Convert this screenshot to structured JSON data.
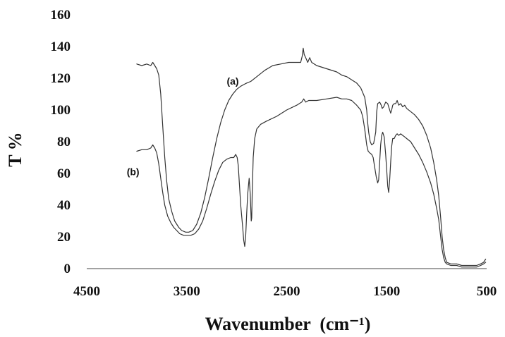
{
  "chart_data": {
    "type": "line",
    "title": "",
    "xlabel": "Wavenumber  (cm⁻¹)",
    "ylabel": "T %",
    "xlim": [
      4500,
      500
    ],
    "ylim": [
      0,
      160
    ],
    "x_ticks": [
      "4500",
      "3500",
      "2500",
      "1500",
      "500"
    ],
    "y_ticks": [
      "0",
      "20",
      "40",
      "60",
      "80",
      "100",
      "120",
      "140",
      "160"
    ],
    "x_tick_values": [
      4500,
      3500,
      2500,
      1500,
      500
    ],
    "y_tick_values": [
      0,
      20,
      40,
      60,
      80,
      100,
      120,
      140,
      160
    ],
    "grid": false,
    "line_color": "#333333",
    "series": [
      {
        "name": "(a)",
        "label_pos": [
          3100,
          116
        ],
        "points": [
          [
            4000,
            129
          ],
          [
            3950,
            128
          ],
          [
            3900,
            129
          ],
          [
            3860,
            128
          ],
          [
            3840,
            130
          ],
          [
            3820,
            128
          ],
          [
            3800,
            126
          ],
          [
            3780,
            122
          ],
          [
            3760,
            110
          ],
          [
            3740,
            90
          ],
          [
            3720,
            70
          ],
          [
            3700,
            55
          ],
          [
            3680,
            44
          ],
          [
            3650,
            36
          ],
          [
            3620,
            30
          ],
          [
            3580,
            26
          ],
          [
            3550,
            24
          ],
          [
            3510,
            23
          ],
          [
            3480,
            23
          ],
          [
            3440,
            24
          ],
          [
            3400,
            28
          ],
          [
            3360,
            35
          ],
          [
            3320,
            45
          ],
          [
            3280,
            57
          ],
          [
            3240,
            70
          ],
          [
            3200,
            82
          ],
          [
            3160,
            92
          ],
          [
            3120,
            100
          ],
          [
            3080,
            106
          ],
          [
            3040,
            110
          ],
          [
            3000,
            113
          ],
          [
            2960,
            115
          ],
          [
            2930,
            116
          ],
          [
            2900,
            117
          ],
          [
            2860,
            118
          ],
          [
            2800,
            121
          ],
          [
            2720,
            125
          ],
          [
            2640,
            128
          ],
          [
            2560,
            129
          ],
          [
            2480,
            130
          ],
          [
            2420,
            130
          ],
          [
            2360,
            130
          ],
          [
            2345,
            134
          ],
          [
            2335,
            139
          ],
          [
            2325,
            135
          ],
          [
            2310,
            133
          ],
          [
            2290,
            130
          ],
          [
            2270,
            133
          ],
          [
            2250,
            130
          ],
          [
            2200,
            128
          ],
          [
            2100,
            126
          ],
          [
            2000,
            124
          ],
          [
            1950,
            122
          ],
          [
            1900,
            121
          ],
          [
            1850,
            119
          ],
          [
            1800,
            117
          ],
          [
            1760,
            114
          ],
          [
            1720,
            108
          ],
          [
            1700,
            100
          ],
          [
            1690,
            92
          ],
          [
            1680,
            86
          ],
          [
            1665,
            80
          ],
          [
            1650,
            78
          ],
          [
            1630,
            79
          ],
          [
            1610,
            86
          ],
          [
            1600,
            99
          ],
          [
            1590,
            104
          ],
          [
            1570,
            105
          ],
          [
            1555,
            103
          ],
          [
            1545,
            101
          ],
          [
            1530,
            102
          ],
          [
            1510,
            105
          ],
          [
            1490,
            104
          ],
          [
            1470,
            100
          ],
          [
            1460,
            98
          ],
          [
            1450,
            100
          ],
          [
            1440,
            103
          ],
          [
            1425,
            104
          ],
          [
            1410,
            104
          ],
          [
            1395,
            106
          ],
          [
            1380,
            103
          ],
          [
            1360,
            104
          ],
          [
            1340,
            102
          ],
          [
            1320,
            103
          ],
          [
            1300,
            101
          ],
          [
            1260,
            99
          ],
          [
            1220,
            97
          ],
          [
            1180,
            94
          ],
          [
            1140,
            90
          ],
          [
            1100,
            84
          ],
          [
            1060,
            76
          ],
          [
            1030,
            67
          ],
          [
            1000,
            56
          ],
          [
            980,
            46
          ],
          [
            960,
            32
          ],
          [
            945,
            20
          ],
          [
            930,
            12
          ],
          [
            915,
            7
          ],
          [
            900,
            4
          ],
          [
            860,
            3
          ],
          [
            800,
            3
          ],
          [
            750,
            2
          ],
          [
            700,
            2
          ],
          [
            650,
            2
          ],
          [
            600,
            2
          ],
          [
            560,
            3
          ],
          [
            530,
            4
          ],
          [
            510,
            6
          ]
        ]
      },
      {
        "name": "(b)",
        "label_pos": [
          4100,
          59
        ],
        "points": [
          [
            4000,
            74
          ],
          [
            3950,
            75
          ],
          [
            3900,
            75
          ],
          [
            3860,
            76
          ],
          [
            3840,
            78
          ],
          [
            3820,
            76
          ],
          [
            3800,
            73
          ],
          [
            3780,
            66
          ],
          [
            3760,
            57
          ],
          [
            3740,
            48
          ],
          [
            3720,
            40
          ],
          [
            3690,
            33
          ],
          [
            3660,
            29
          ],
          [
            3630,
            26
          ],
          [
            3600,
            24
          ],
          [
            3570,
            22
          ],
          [
            3530,
            21
          ],
          [
            3500,
            21
          ],
          [
            3460,
            21
          ],
          [
            3420,
            22
          ],
          [
            3380,
            25
          ],
          [
            3340,
            30
          ],
          [
            3300,
            38
          ],
          [
            3260,
            47
          ],
          [
            3220,
            55
          ],
          [
            3180,
            62
          ],
          [
            3140,
            67
          ],
          [
            3100,
            69
          ],
          [
            3060,
            70
          ],
          [
            3030,
            70
          ],
          [
            3010,
            72
          ],
          [
            2995,
            70
          ],
          [
            2985,
            65
          ],
          [
            2975,
            55
          ],
          [
            2960,
            40
          ],
          [
            2940,
            26
          ],
          [
            2930,
            18
          ],
          [
            2920,
            14
          ],
          [
            2910,
            21
          ],
          [
            2900,
            35
          ],
          [
            2890,
            47
          ],
          [
            2880,
            54
          ],
          [
            2875,
            57
          ],
          [
            2865,
            47
          ],
          [
            2855,
            30
          ],
          [
            2850,
            32
          ],
          [
            2845,
            48
          ],
          [
            2835,
            70
          ],
          [
            2820,
            82
          ],
          [
            2800,
            88
          ],
          [
            2760,
            91
          ],
          [
            2700,
            93
          ],
          [
            2600,
            96
          ],
          [
            2500,
            100
          ],
          [
            2400,
            103
          ],
          [
            2350,
            105
          ],
          [
            2330,
            107
          ],
          [
            2310,
            105
          ],
          [
            2280,
            106
          ],
          [
            2200,
            106
          ],
          [
            2100,
            107
          ],
          [
            2000,
            108
          ],
          [
            1950,
            107
          ],
          [
            1900,
            107
          ],
          [
            1850,
            106
          ],
          [
            1800,
            103
          ],
          [
            1760,
            100
          ],
          [
            1740,
            96
          ],
          [
            1720,
            88
          ],
          [
            1700,
            78
          ],
          [
            1685,
            74
          ],
          [
            1670,
            73
          ],
          [
            1650,
            72
          ],
          [
            1635,
            70
          ],
          [
            1620,
            64
          ],
          [
            1605,
            58
          ],
          [
            1590,
            54
          ],
          [
            1580,
            56
          ],
          [
            1570,
            67
          ],
          [
            1560,
            78
          ],
          [
            1550,
            84
          ],
          [
            1540,
            86
          ],
          [
            1525,
            83
          ],
          [
            1510,
            72
          ],
          [
            1500,
            62
          ],
          [
            1490,
            52
          ],
          [
            1480,
            48
          ],
          [
            1470,
            56
          ],
          [
            1460,
            67
          ],
          [
            1450,
            77
          ],
          [
            1440,
            82
          ],
          [
            1425,
            82
          ],
          [
            1410,
            84
          ],
          [
            1395,
            85
          ],
          [
            1380,
            84
          ],
          [
            1360,
            85
          ],
          [
            1340,
            84
          ],
          [
            1320,
            83
          ],
          [
            1300,
            82
          ],
          [
            1260,
            80
          ],
          [
            1220,
            76
          ],
          [
            1180,
            72
          ],
          [
            1140,
            67
          ],
          [
            1100,
            61
          ],
          [
            1060,
            54
          ],
          [
            1030,
            47
          ],
          [
            1000,
            38
          ],
          [
            980,
            31
          ],
          [
            960,
            20
          ],
          [
            945,
            12
          ],
          [
            930,
            7
          ],
          [
            915,
            4
          ],
          [
            900,
            3
          ],
          [
            860,
            2
          ],
          [
            800,
            2
          ],
          [
            750,
            1
          ],
          [
            700,
            1
          ],
          [
            650,
            1
          ],
          [
            600,
            1
          ],
          [
            560,
            2
          ],
          [
            530,
            3
          ],
          [
            510,
            4
          ]
        ]
      }
    ]
  }
}
